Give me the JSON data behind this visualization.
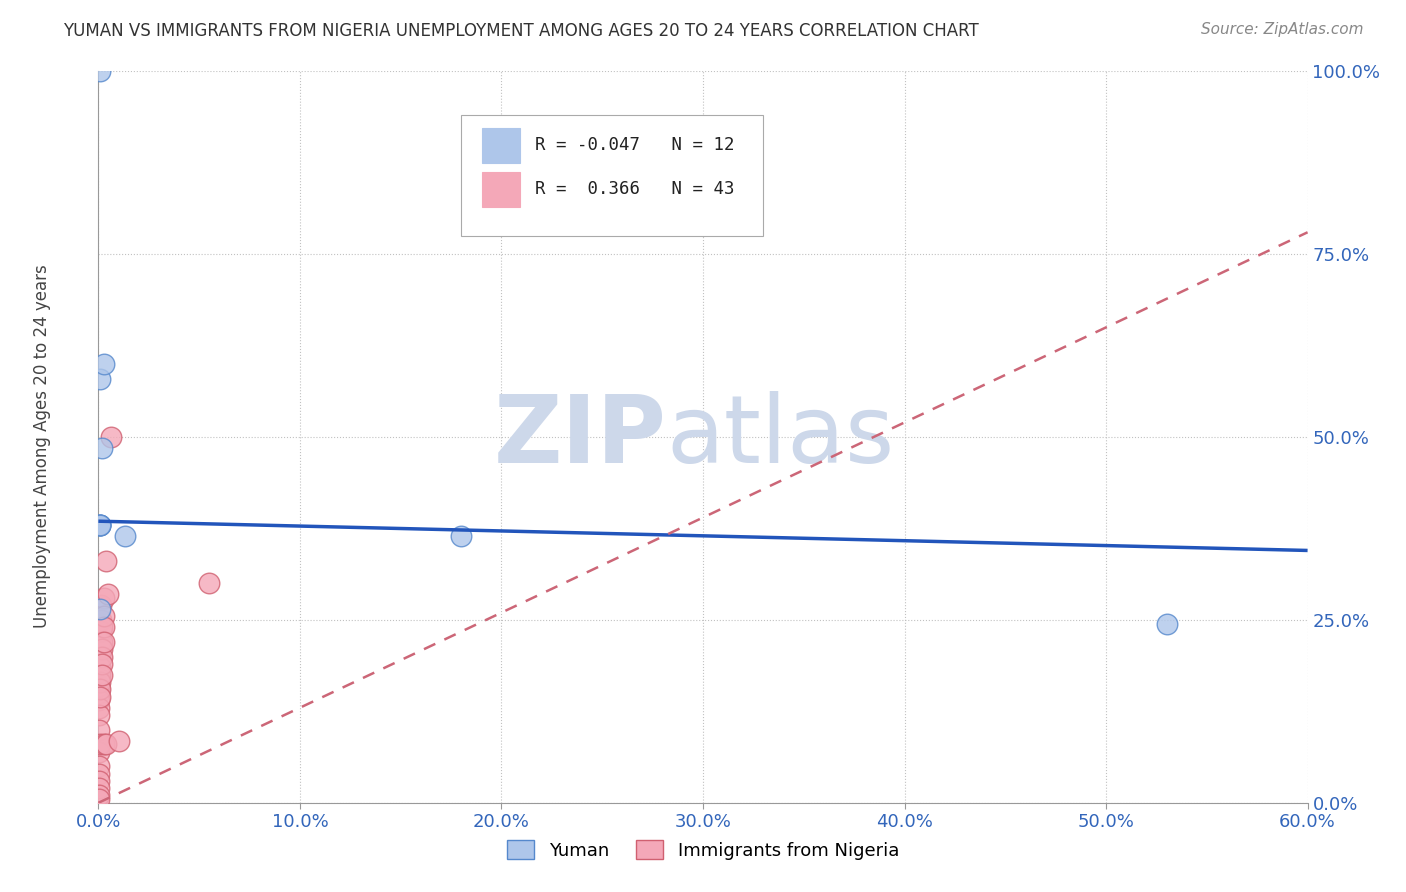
{
  "title": "YUMAN VS IMMIGRANTS FROM NIGERIA UNEMPLOYMENT AMONG AGES 20 TO 24 YEARS CORRELATION CHART",
  "source": "Source: ZipAtlas.com",
  "ylabel": "Unemployment Among Ages 20 to 24 years",
  "xlim": [
    0.0,
    0.6
  ],
  "ylim": [
    0.0,
    1.0
  ],
  "xticks": [
    0.0,
    0.1,
    0.2,
    0.3,
    0.4,
    0.5,
    0.6
  ],
  "xticklabels": [
    "0.0%",
    "10.0%",
    "20.0%",
    "30.0%",
    "40.0%",
    "50.0%",
    "60.0%"
  ],
  "yticks": [
    0.0,
    0.25,
    0.5,
    0.75,
    1.0
  ],
  "yticklabels": [
    "0.0%",
    "25.0%",
    "50.0%",
    "75.0%",
    "100.0%"
  ],
  "yuman_color": "#aec6ea",
  "nigeria_color": "#f4a8b8",
  "yuman_edge": "#5588cc",
  "nigeria_edge": "#d06070",
  "trend_blue_color": "#2255bb",
  "trend_pink_color": "#cc6677",
  "watermark_color": "#cdd8ea",
  "R_yuman": -0.047,
  "N_yuman": 12,
  "R_nigeria": 0.366,
  "N_nigeria": 43,
  "yuman_x": [
    0.001,
    0.001,
    0.001,
    0.001,
    0.001,
    0.002,
    0.003,
    0.013,
    0.18,
    0.53,
    0.001,
    0.001
  ],
  "yuman_y": [
    0.38,
    0.265,
    0.38,
    0.38,
    0.58,
    0.485,
    0.6,
    0.365,
    0.365,
    0.245,
    1.0,
    0.38
  ],
  "nigeria_x": [
    0.0005,
    0.0005,
    0.0005,
    0.0005,
    0.0005,
    0.0005,
    0.0005,
    0.0005,
    0.0005,
    0.0005,
    0.0005,
    0.0005,
    0.0005,
    0.0005,
    0.0005,
    0.001,
    0.001,
    0.001,
    0.001,
    0.001,
    0.001,
    0.001,
    0.001,
    0.0015,
    0.0015,
    0.0015,
    0.002,
    0.002,
    0.002,
    0.002,
    0.002,
    0.002,
    0.003,
    0.003,
    0.003,
    0.003,
    0.003,
    0.004,
    0.004,
    0.005,
    0.006,
    0.01,
    0.055
  ],
  "nigeria_y": [
    0.17,
    0.16,
    0.155,
    0.15,
    0.14,
    0.13,
    0.12,
    0.1,
    0.07,
    0.05,
    0.04,
    0.03,
    0.02,
    0.01,
    0.005,
    0.22,
    0.2,
    0.185,
    0.175,
    0.165,
    0.155,
    0.145,
    0.08,
    0.27,
    0.25,
    0.235,
    0.24,
    0.22,
    0.21,
    0.2,
    0.19,
    0.175,
    0.28,
    0.255,
    0.24,
    0.22,
    0.08,
    0.33,
    0.08,
    0.285,
    0.5,
    0.085,
    0.3
  ],
  "blue_line_x": [
    0.0,
    0.6
  ],
  "blue_line_y": [
    0.385,
    0.345
  ],
  "pink_line_x": [
    0.0,
    0.6
  ],
  "pink_line_y": [
    0.0,
    0.78
  ]
}
